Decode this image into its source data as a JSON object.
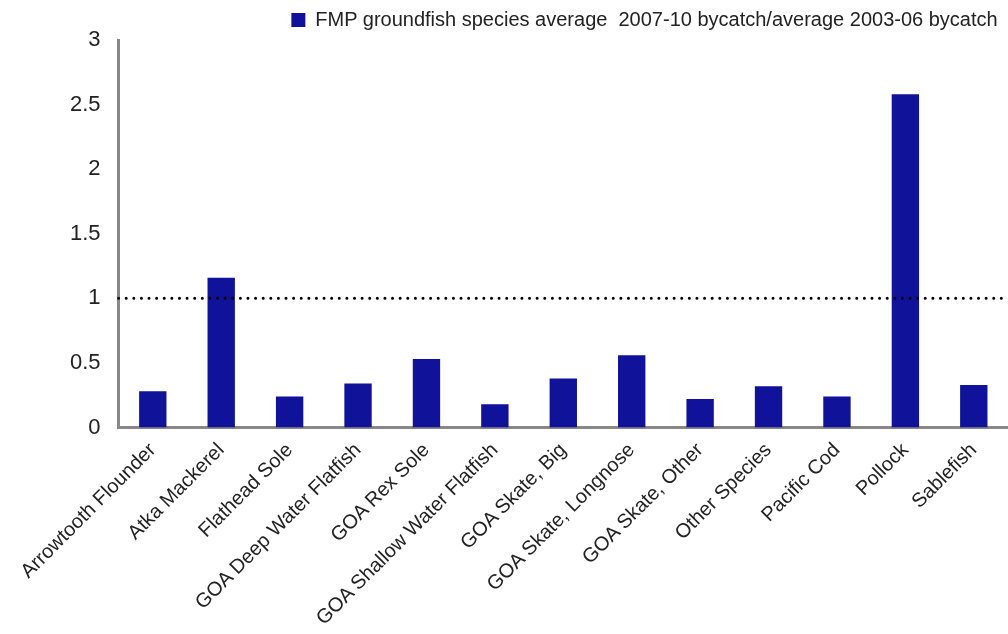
{
  "chart_data": {
    "type": "bar",
    "categories": [
      "Arrowtooth Flounder",
      "Atka Mackerel",
      "Flathead Sole",
      "GOA Deep Water Flatfish",
      "GOA Rex Sole",
      "GOA Shallow Water Flatfish",
      "GOA Skate, Big",
      "GOA Skate, Longnose",
      "GOA Skate, Other",
      "Other Species",
      "Pacific Cod",
      "Pollock",
      "Sablefish"
    ],
    "series": [
      {
        "name": "FMP groundfish species average  2007-10 bycatch/average 2003-06 bycatch",
        "color": "#10129a",
        "values": [
          0.28,
          1.16,
          0.24,
          0.34,
          0.53,
          0.18,
          0.38,
          0.56,
          0.22,
          0.32,
          0.24,
          2.58,
          0.33
        ]
      }
    ],
    "ylim": [
      0,
      3
    ],
    "yticks": [
      0,
      0.5,
      1,
      1.5,
      2,
      2.5,
      3
    ],
    "ref_lines": [
      {
        "axis": "y",
        "value": 1,
        "color": "#000000",
        "line_style": "dotted"
      }
    ],
    "grid": false,
    "legend": "top"
  }
}
